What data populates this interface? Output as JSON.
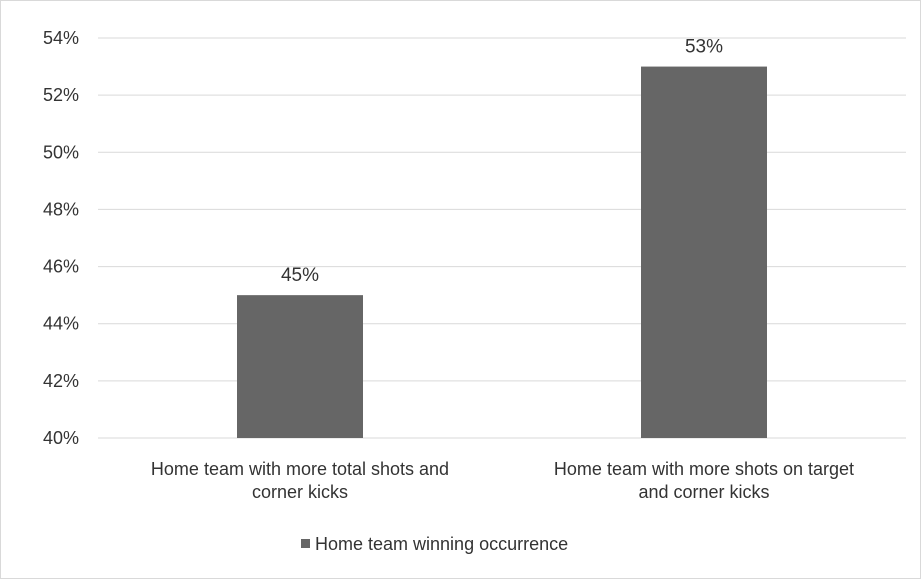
{
  "chart_data": {
    "type": "bar",
    "title": "",
    "xlabel": "",
    "ylabel": "",
    "categories": [
      [
        "Home team with more total shots and",
        "corner kicks"
      ],
      [
        "Home team with more shots on target",
        "and corner kicks"
      ]
    ],
    "series": [
      {
        "name": "Home team winning occurrence",
        "values": [
          45,
          53
        ],
        "labels": [
          "45%",
          "53%"
        ],
        "color": "#666666"
      }
    ],
    "ylim": [
      40,
      54
    ],
    "ytick_values": [
      40,
      42,
      44,
      46,
      48,
      50,
      52,
      54
    ],
    "ytick_labels": [
      "40%",
      "42%",
      "44%",
      "46%",
      "48%",
      "50%",
      "52%",
      "54%"
    ],
    "grid": true,
    "gridline_color": "#d9d9d9",
    "legend": "bottom"
  }
}
